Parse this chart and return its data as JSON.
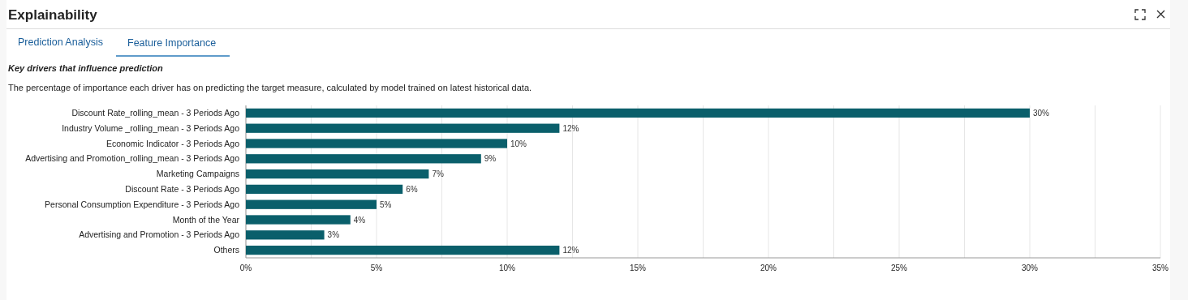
{
  "chart_data": {
    "type": "bar",
    "orientation": "horizontal",
    "title": "Key drivers that influence prediction",
    "subtitle": "The percentage of importance each driver has on predicting the target measure, calculated by model trained on latest historical data.",
    "annotations": [
      "Explainability",
      "Prediction Analysis",
      "Feature Importance"
    ],
    "categories": [
      "Discount Rate_rolling_mean - 3 Periods Ago",
      "Industry Volume _rolling_mean - 3 Periods Ago",
      "Economic Indicator - 3 Periods Ago",
      "Advertising and Promotion_rolling_mean - 3 Periods Ago",
      "Marketing Campaigns",
      "Discount Rate - 3 Periods Ago",
      "Personal Consumption Expenditure - 3 Periods Ago",
      "Month of the Year",
      "Advertising and Promotion - 3 Periods Ago",
      "Others"
    ],
    "values": [
      30,
      12,
      10,
      9,
      7,
      6,
      5,
      4,
      3,
      12
    ],
    "value_labels": [
      "30%",
      "12%",
      "10%",
      "9%",
      "7%",
      "6%",
      "5%",
      "4%",
      "3%",
      "12%"
    ],
    "color": "#0a5f6b",
    "xlim": [
      0,
      35
    ],
    "xticks": [
      {
        "value": 0,
        "label": "0%"
      },
      {
        "value": 2.5,
        "label": null
      },
      {
        "value": 5,
        "label": "5%"
      },
      {
        "value": 7.5,
        "label": null
      },
      {
        "value": 10,
        "label": "10%"
      },
      {
        "value": 12.5,
        "label": null
      },
      {
        "value": 15,
        "label": "15%"
      },
      {
        "value": 17.5,
        "label": null
      },
      {
        "value": 20,
        "label": "20%"
      },
      {
        "value": 22.5,
        "label": null
      },
      {
        "value": 25,
        "label": "25%"
      },
      {
        "value": 27.5,
        "label": null
      },
      {
        "value": 30,
        "label": "30%"
      },
      {
        "value": 32.5,
        "label": null
      },
      {
        "value": 35,
        "label": "35%"
      }
    ],
    "grid": "x"
  }
}
